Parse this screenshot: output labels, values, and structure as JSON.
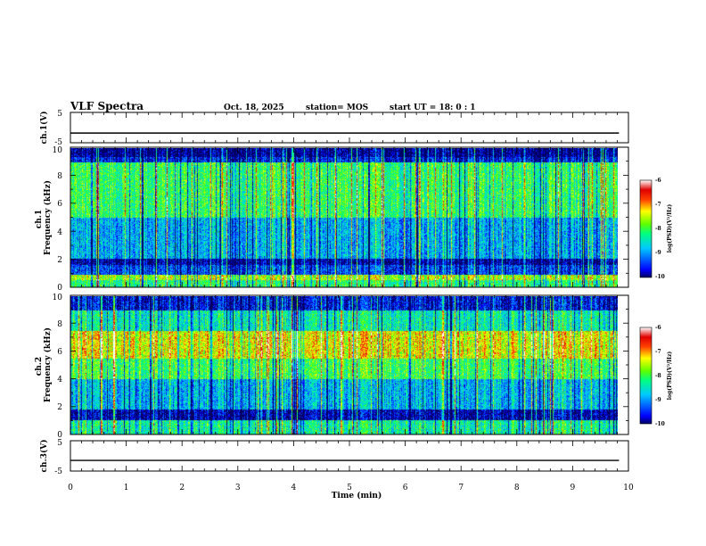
{
  "header": {
    "title": "VLF Spectra",
    "date": "Oct. 18, 2025",
    "station": "station= MOS",
    "start": "start  UT =   18: 0  : 1"
  },
  "colorbar": {
    "label": "log(PSD)(V²/Hz)",
    "ticks": [
      "-6",
      "-7",
      "-8",
      "-9",
      "-10"
    ],
    "range": [
      -10,
      -6
    ]
  },
  "chart_data": [
    {
      "type": "line",
      "ylabel": "ch.1(V)",
      "ylim": [
        -5,
        5
      ],
      "yticks": [
        "5",
        "-5"
      ],
      "x": [
        0,
        9.83
      ],
      "values": [
        -1.8,
        -1.8
      ]
    },
    {
      "type": "heatmap",
      "ylabel": "ch.1\nFrequency (kHz)",
      "ylim": [
        0,
        10
      ],
      "yticks": [
        "0",
        "2",
        "4",
        "6",
        "8",
        "10"
      ],
      "xlim": [
        0,
        9.83
      ],
      "z_range": [
        -10,
        -6
      ],
      "bands": [
        {
          "f": [
            0,
            0.5
          ],
          "level": -8.2
        },
        {
          "f": [
            0.5,
            0.9
          ],
          "level": -7.6
        },
        {
          "f": [
            0.9,
            1.6
          ],
          "level": -9.4
        },
        {
          "f": [
            1.6,
            2.0
          ],
          "level": -9.9
        },
        {
          "f": [
            2.0,
            5.0
          ],
          "level": -8.9
        },
        {
          "f": [
            5.0,
            9.0
          ],
          "level": -8.1
        },
        {
          "f": [
            9.0,
            9.4
          ],
          "level": -9.6
        },
        {
          "f": [
            9.4,
            10
          ],
          "level": -10
        }
      ]
    },
    {
      "type": "heatmap",
      "ylabel": "ch.2\nFrequency (kHz)",
      "ylim": [
        0,
        10
      ],
      "yticks": [
        "0",
        "2",
        "4",
        "6",
        "8",
        "10"
      ],
      "xlim": [
        0,
        9.83
      ],
      "z_range": [
        -10,
        -6
      ],
      "bands": [
        {
          "f": [
            0,
            1.0
          ],
          "level": -8.3
        },
        {
          "f": [
            1.0,
            1.8
          ],
          "level": -9.8
        },
        {
          "f": [
            1.8,
            4.0
          ],
          "level": -8.8
        },
        {
          "f": [
            4.0,
            5.5
          ],
          "level": -8.0
        },
        {
          "f": [
            5.5,
            7.5
          ],
          "level": -7.3
        },
        {
          "f": [
            7.5,
            9.0
          ],
          "level": -8.4
        },
        {
          "f": [
            9.0,
            10
          ],
          "level": -9.6
        }
      ]
    },
    {
      "type": "line",
      "ylabel": "ch.3(V)",
      "ylim": [
        -5,
        5
      ],
      "yticks": [
        "5",
        "-5"
      ],
      "xlabel": "Time  (min)",
      "xlim": [
        0,
        10
      ],
      "xticks": [
        "0",
        "1",
        "2",
        "3",
        "4",
        "5",
        "6",
        "7",
        "8",
        "9",
        "10"
      ],
      "x": [
        0,
        9.83
      ],
      "values": [
        -1.5,
        -1.5
      ]
    }
  ]
}
